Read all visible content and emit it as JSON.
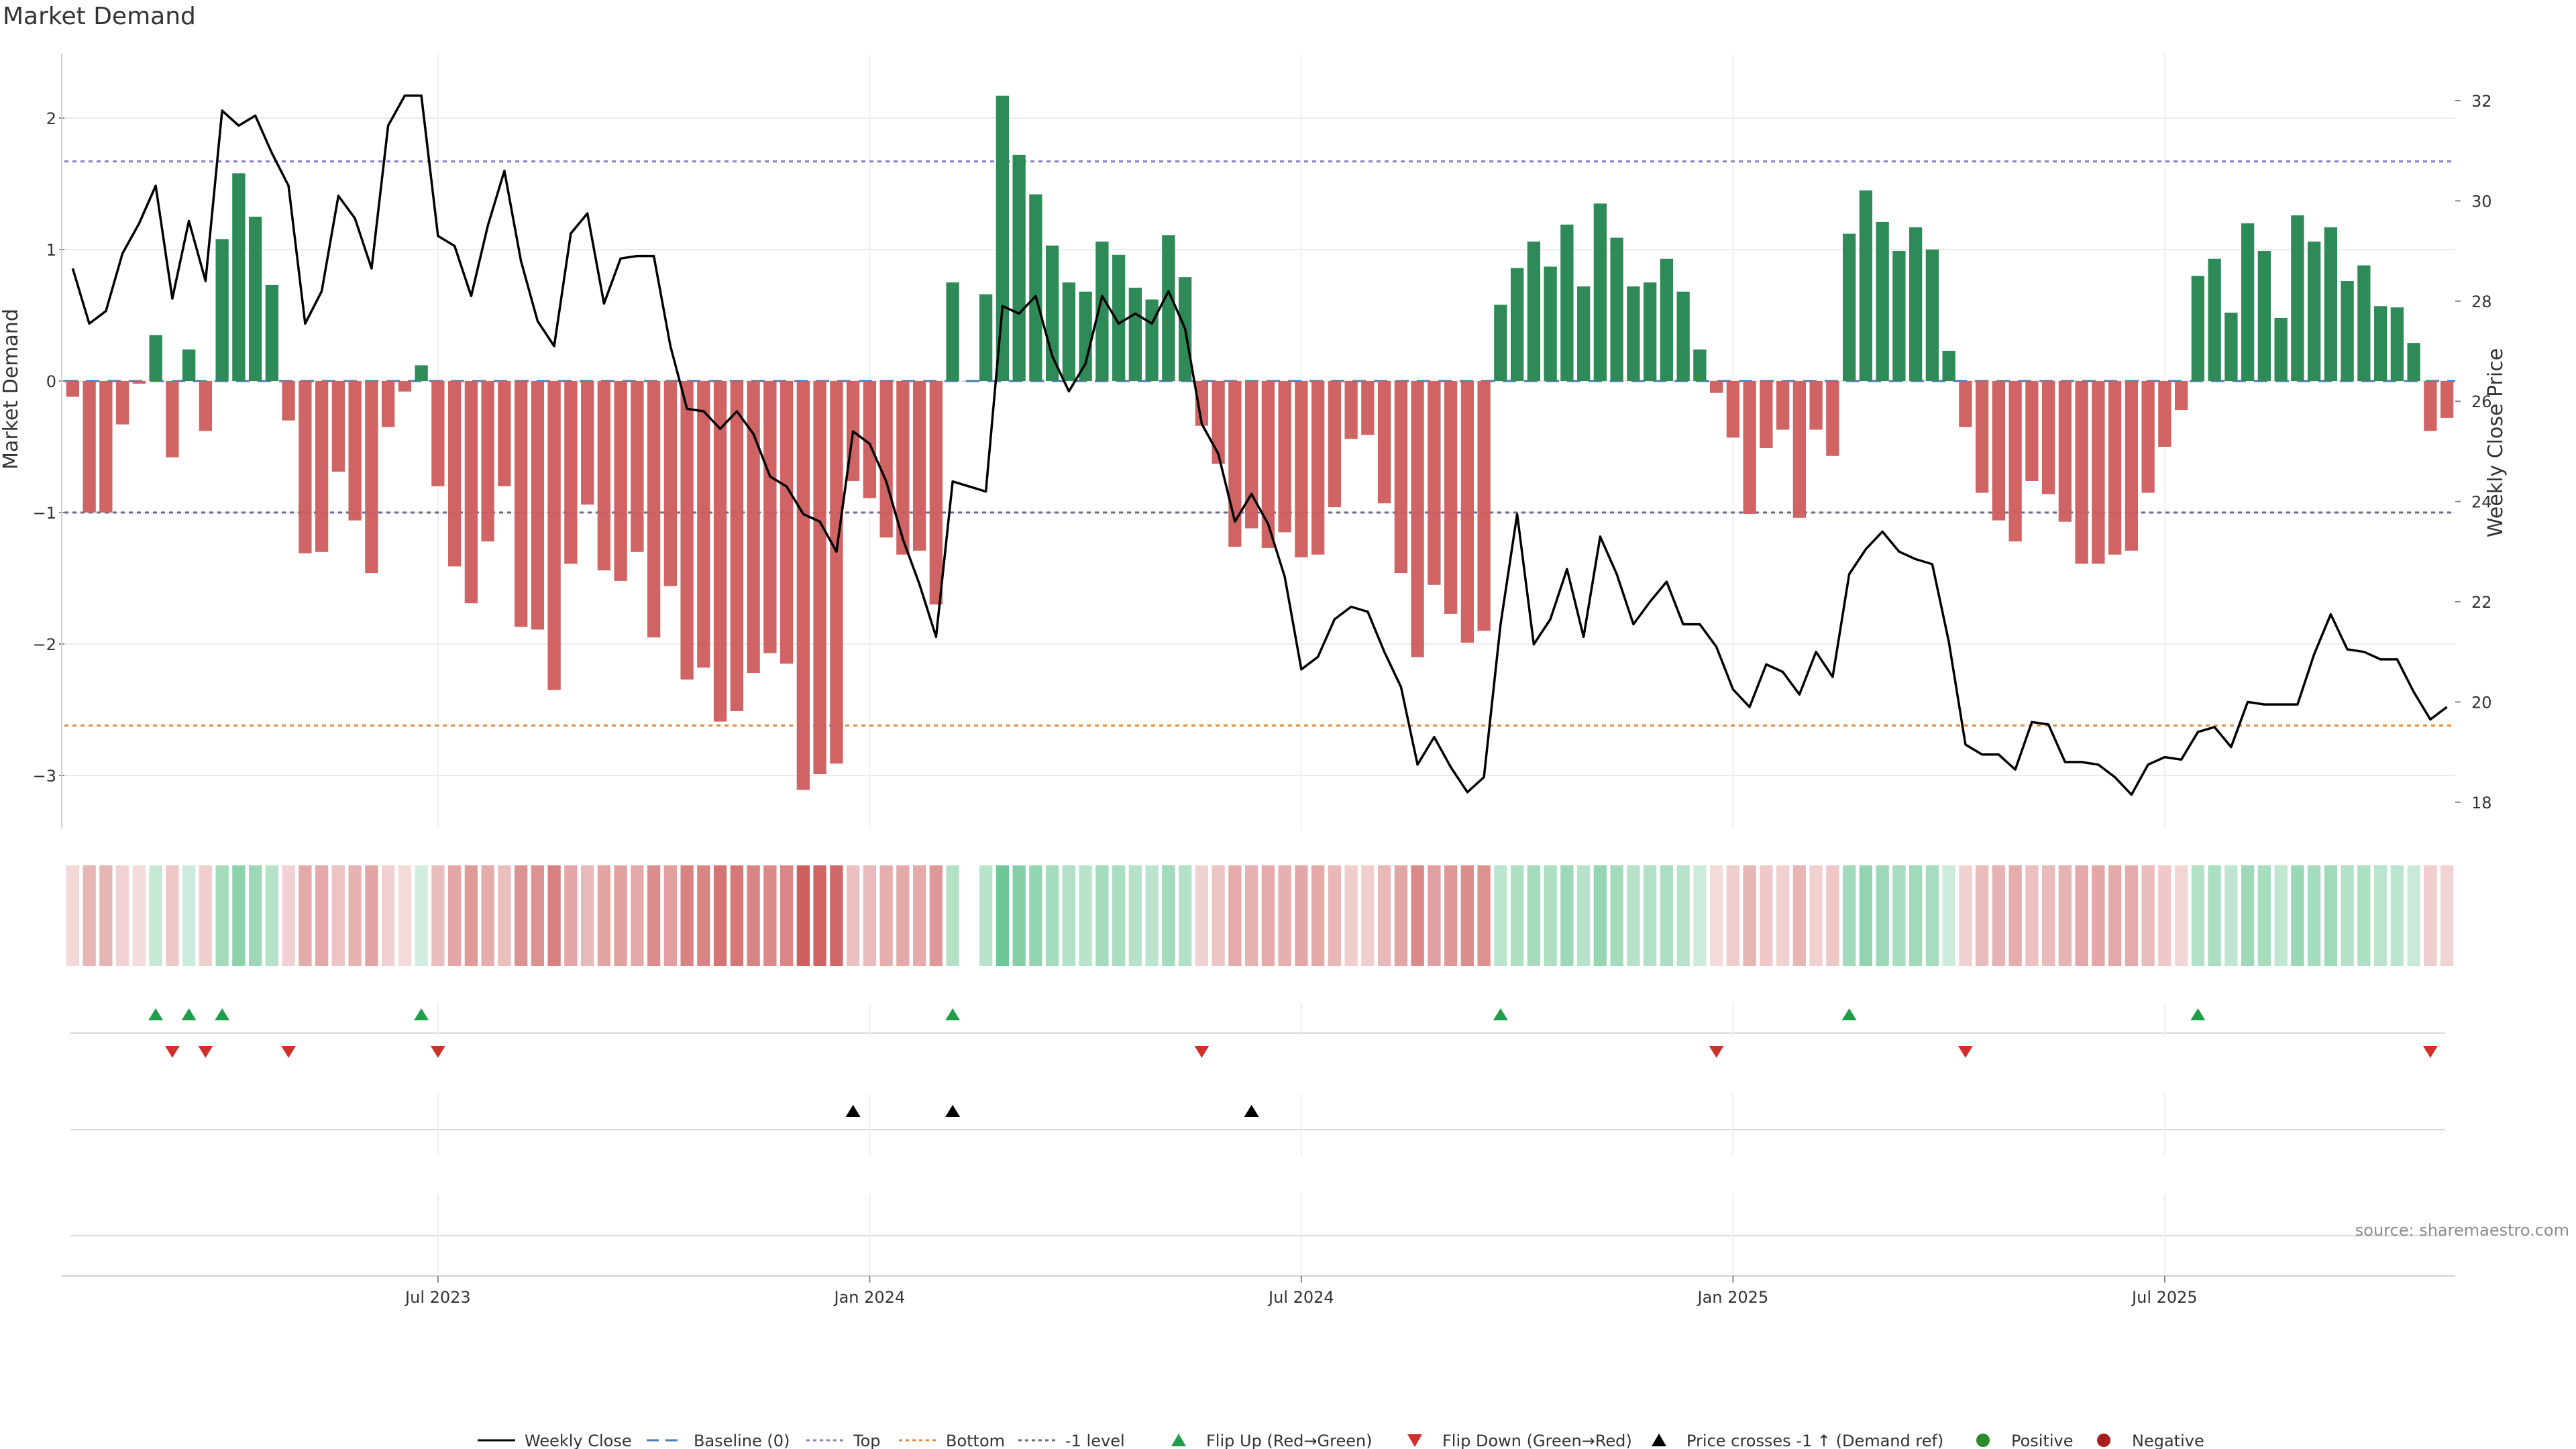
{
  "chart_data": {
    "title": "Market Demand",
    "type": "bar",
    "ylabel_left": "Market Demand",
    "ylabel_right": "Weekly Close Price",
    "ylim_left": [
      -3.4,
      2.4
    ],
    "ylim_right": [
      17.4,
      33.0
    ],
    "yticks_left": [
      2,
      1,
      0,
      -1,
      -2,
      -3
    ],
    "ytick_labels_left": [
      "2",
      "1",
      "0",
      "−1",
      "−2",
      "−3"
    ],
    "yticks_right": [
      32,
      30,
      28,
      26,
      24,
      22,
      20,
      18
    ],
    "ytick_labels_right": [
      "32",
      "30",
      "28",
      "26",
      "24",
      "22",
      "20",
      "18"
    ],
    "reference_lines": {
      "top": 1.67,
      "bottom": -2.62,
      "minus_one": -1.0,
      "baseline": 0
    },
    "x_tick_labels": [
      "Jul 2023",
      "Jan 2024",
      "Jul 2024",
      "Jan 2025",
      "Jul 2025"
    ],
    "x_tick_weeks": [
      22,
      48,
      74,
      100,
      126
    ],
    "demand": [
      -0.12,
      -1.0,
      -1.0,
      -0.33,
      -0.02,
      0.35,
      -0.58,
      0.24,
      -0.38,
      1.08,
      1.58,
      1.25,
      0.73,
      -0.3,
      -1.31,
      -1.3,
      -0.69,
      -1.06,
      -1.46,
      -0.35,
      -0.08,
      0.12,
      -0.8,
      -1.41,
      -1.69,
      -1.22,
      -0.8,
      -1.87,
      -1.89,
      -2.35,
      -1.39,
      -0.94,
      -1.44,
      -1.52,
      -1.3,
      -1.95,
      -1.56,
      -2.27,
      -2.18,
      -2.59,
      -2.51,
      -2.22,
      -2.07,
      -2.15,
      -3.11,
      -2.99,
      -2.91,
      -0.76,
      -0.89,
      -1.19,
      -1.32,
      -1.29,
      -1.7,
      0.75,
      0.0,
      0.66,
      2.17,
      1.72,
      1.42,
      1.03,
      0.75,
      0.68,
      1.06,
      0.96,
      0.71,
      0.62,
      1.11,
      0.79,
      -0.34,
      -0.63,
      -1.26,
      -1.12,
      -1.27,
      -1.15,
      -1.34,
      -1.32,
      -0.96,
      -0.44,
      -0.41,
      -0.93,
      -1.46,
      -2.1,
      -1.55,
      -1.77,
      -1.99,
      -1.9,
      0.58,
      0.86,
      1.06,
      0.87,
      1.19,
      0.72,
      1.35,
      1.09,
      0.72,
      0.75,
      0.93,
      0.68,
      0.24,
      -0.09,
      -0.43,
      -1.01,
      -0.51,
      -0.37,
      -1.04,
      -0.37,
      -0.57,
      1.12,
      1.45,
      1.21,
      0.99,
      1.17,
      1.0,
      0.23,
      -0.35,
      -0.85,
      -1.06,
      -1.22,
      -0.76,
      -0.86,
      -1.07,
      -1.39,
      -1.39,
      -1.32,
      -1.29,
      -0.85,
      -0.5,
      -0.22,
      0.8,
      0.93,
      0.52,
      1.2,
      0.99,
      0.48,
      1.26,
      1.06,
      1.17,
      0.76,
      0.88,
      0.57,
      0.56,
      0.29,
      -0.38,
      -0.28
    ],
    "weekly_close": [
      28.65,
      27.55,
      27.8,
      28.95,
      29.55,
      30.3,
      28.05,
      29.6,
      28.4,
      31.8,
      31.5,
      31.7,
      30.95,
      30.3,
      27.55,
      28.2,
      30.1,
      29.65,
      28.65,
      31.5,
      32.1,
      32.1,
      29.3,
      29.1,
      28.1,
      29.5,
      30.6,
      28.8,
      27.6,
      27.1,
      29.35,
      29.75,
      27.95,
      28.85,
      28.9,
      28.9,
      27.1,
      25.85,
      25.8,
      25.45,
      25.8,
      25.35,
      24.5,
      24.3,
      23.75,
      23.6,
      23.0,
      25.4,
      25.15,
      24.4,
      23.25,
      22.35,
      21.3,
      24.4,
      24.3,
      24.2,
      27.9,
      27.75,
      28.1,
      26.9,
      26.2,
      26.75,
      28.1,
      27.55,
      27.75,
      27.55,
      28.2,
      27.45,
      25.55,
      24.95,
      23.6,
      24.15,
      23.55,
      22.5,
      20.65,
      20.9,
      21.65,
      21.9,
      21.8,
      21.0,
      20.3,
      18.75,
      19.3,
      18.7,
      18.2,
      18.5,
      21.55,
      23.75,
      21.15,
      21.65,
      22.65,
      21.3,
      23.3,
      22.55,
      21.55,
      22.0,
      22.4,
      21.55,
      21.55,
      21.1,
      20.25,
      19.9,
      20.75,
      20.6,
      20.15,
      21.0,
      20.5,
      22.55,
      23.05,
      23.4,
      23.0,
      22.85,
      22.75,
      21.2,
      19.15,
      18.95,
      18.95,
      18.65,
      19.6,
      19.55,
      18.8,
      18.8,
      18.75,
      18.5,
      18.15,
      18.75,
      18.9,
      18.85,
      19.4,
      19.5,
      19.1,
      20.0,
      19.95,
      19.95,
      19.95,
      20.95,
      21.75,
      21.05,
      21.0,
      20.85,
      20.85,
      20.2,
      19.65,
      19.9
    ],
    "flip_up_weeks": [
      5,
      7,
      9,
      21,
      53,
      86,
      107,
      128
    ],
    "flip_down_weeks": [
      6,
      8,
      13,
      22,
      68,
      99,
      114,
      142
    ],
    "price_cross_weeks": [
      47,
      53,
      71
    ],
    "legend": [
      "Weekly Close",
      "Baseline (0)",
      "Top",
      "Bottom",
      "-1 level",
      "Flip Up (Red→Green)",
      "Flip Down (Green→Red)",
      "Price crosses -1 ↑ (Demand ref)",
      "Positive",
      "Negative"
    ],
    "source": "source: sharemaestro.com",
    "colors": {
      "positive": "#2e8b57",
      "negative": "#cd5c5c",
      "price_line": "#000000",
      "top_line": "#8a7dc4",
      "bottom_line": "#e08a3c",
      "minus_one_line": "#6a6a8a",
      "baseline": "#4a7ab5",
      "flip_up": "#1f9e4a",
      "flip_down": "#d0302a",
      "cross": "#000000",
      "positive_dot": "#2a8a2a",
      "negative_dot": "#a81e1e"
    }
  }
}
